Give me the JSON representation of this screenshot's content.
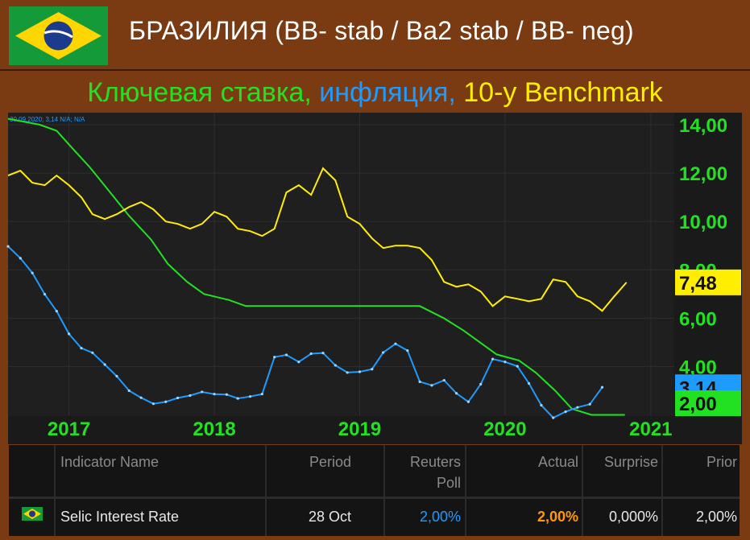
{
  "header": {
    "title": "БРАЗИЛИЯ (BB- stab / Ba2 stab / BB- neg)",
    "subtitle_parts": [
      "Ключевая ставка,",
      " инфляция,",
      " 10-y Benchmark"
    ]
  },
  "chart_info_text": "30.09.2020; 3,14 N/A; N/A",
  "colors": {
    "key_rate": "#22e022",
    "inflation": "#1e9bff",
    "benchmark": "#ffee00",
    "header_bg": "#7a3b12",
    "chart_bg": "#1f1f1f",
    "axis_text": "#22e022"
  },
  "chart_data": {
    "type": "line",
    "xlim": [
      "2016-08-01",
      "2021-03-01"
    ],
    "ylim": [
      1.95,
      14.5
    ],
    "x_tick_labels": [
      "2017",
      "2018",
      "2019",
      "2020",
      "2021"
    ],
    "x_tick_dates": [
      "2017-01-01",
      "2018-01-01",
      "2019-01-01",
      "2020-01-01",
      "2021-01-01"
    ],
    "y_tick_labels": [
      "14,00",
      "12,00",
      "10,00",
      "8,00",
      "6,00",
      "4,00"
    ],
    "y_tick_values": [
      14,
      12,
      10,
      8,
      6,
      4
    ],
    "last_value_labels": [
      {
        "series": "benchmark",
        "value": 7.48,
        "text": "7,48"
      },
      {
        "series": "inflation",
        "value": 3.14,
        "text": "3,14"
      },
      {
        "series": "key_rate",
        "value": 2.0,
        "text": "2,00"
      }
    ],
    "series": [
      {
        "key": "key_rate",
        "x": [
          "2016-08-01",
          "2016-10-20",
          "2016-12-01",
          "2017-01-11",
          "2017-02-22",
          "2017-04-12",
          "2017-05-31",
          "2017-07-26",
          "2017-09-06",
          "2017-10-25",
          "2017-12-06",
          "2018-02-07",
          "2018-03-21",
          "2018-06-01",
          "2019-06-01",
          "2019-07-31",
          "2019-09-18",
          "2019-10-30",
          "2019-12-11",
          "2020-02-05",
          "2020-03-18",
          "2020-05-06",
          "2020-06-17",
          "2020-08-05",
          "2020-10-28"
        ],
        "y": [
          14.25,
          14.0,
          13.75,
          13.0,
          12.25,
          11.25,
          10.25,
          9.25,
          8.25,
          7.5,
          7.0,
          6.75,
          6.5,
          6.5,
          6.5,
          6.0,
          5.5,
          5.0,
          4.5,
          4.25,
          3.75,
          3.0,
          2.25,
          2.0,
          2.0
        ]
      },
      {
        "key": "inflation",
        "x": [
          "2016-08-01",
          "2016-09-01",
          "2016-10-01",
          "2016-11-01",
          "2016-12-01",
          "2017-01-01",
          "2017-02-01",
          "2017-03-01",
          "2017-04-01",
          "2017-05-01",
          "2017-06-01",
          "2017-07-01",
          "2017-08-01",
          "2017-09-01",
          "2017-10-01",
          "2017-11-01",
          "2017-12-01",
          "2018-01-01",
          "2018-02-01",
          "2018-03-01",
          "2018-04-01",
          "2018-05-01",
          "2018-06-01",
          "2018-07-01",
          "2018-08-01",
          "2018-09-01",
          "2018-10-01",
          "2018-11-01",
          "2018-12-01",
          "2019-01-01",
          "2019-02-01",
          "2019-03-01",
          "2019-04-01",
          "2019-05-01",
          "2019-06-01",
          "2019-07-01",
          "2019-08-01",
          "2019-09-01",
          "2019-10-01",
          "2019-11-01",
          "2019-12-01",
          "2020-01-01",
          "2020-02-01",
          "2020-03-01",
          "2020-04-01",
          "2020-05-01",
          "2020-06-01",
          "2020-07-01",
          "2020-08-01",
          "2020-09-01"
        ],
        "y": [
          8.97,
          8.48,
          7.87,
          6.99,
          6.29,
          5.35,
          4.76,
          4.57,
          4.08,
          3.6,
          3.0,
          2.71,
          2.46,
          2.54,
          2.7,
          2.8,
          2.95,
          2.86,
          2.84,
          2.68,
          2.76,
          2.86,
          4.39,
          4.48,
          4.19,
          4.53,
          4.56,
          4.05,
          3.75,
          3.78,
          3.89,
          4.58,
          4.94,
          4.66,
          3.37,
          3.22,
          3.43,
          2.89,
          2.54,
          3.27,
          4.31,
          4.19,
          4.01,
          3.3,
          2.4,
          1.88,
          2.13,
          2.31,
          2.44,
          3.14
        ]
      },
      {
        "key": "benchmark",
        "x": [
          "2016-08-01",
          "2016-09-01",
          "2016-10-01",
          "2016-11-01",
          "2016-12-01",
          "2017-01-01",
          "2017-02-01",
          "2017-03-01",
          "2017-04-01",
          "2017-05-01",
          "2017-06-01",
          "2017-07-01",
          "2017-08-01",
          "2017-09-01",
          "2017-10-01",
          "2017-11-01",
          "2017-12-01",
          "2018-01-01",
          "2018-02-01",
          "2018-03-01",
          "2018-04-01",
          "2018-05-01",
          "2018-06-01",
          "2018-07-01",
          "2018-08-01",
          "2018-09-01",
          "2018-10-01",
          "2018-11-01",
          "2018-12-01",
          "2019-01-01",
          "2019-02-01",
          "2019-03-01",
          "2019-04-01",
          "2019-05-01",
          "2019-06-01",
          "2019-07-01",
          "2019-08-01",
          "2019-09-01",
          "2019-10-01",
          "2019-11-01",
          "2019-12-01",
          "2020-01-01",
          "2020-02-01",
          "2020-03-01",
          "2020-04-01",
          "2020-05-01",
          "2020-06-01",
          "2020-07-01",
          "2020-08-01",
          "2020-09-01",
          "2020-10-01",
          "2020-11-01"
        ],
        "y": [
          11.9,
          12.1,
          11.6,
          11.5,
          11.9,
          11.5,
          11.0,
          10.3,
          10.1,
          10.3,
          10.6,
          10.8,
          10.5,
          10.0,
          9.9,
          9.7,
          9.9,
          10.4,
          10.2,
          9.7,
          9.6,
          9.4,
          9.7,
          11.2,
          11.5,
          11.1,
          12.2,
          11.7,
          10.2,
          9.9,
          9.3,
          8.9,
          9.0,
          9.0,
          8.9,
          8.4,
          7.5,
          7.3,
          7.4,
          7.1,
          6.5,
          6.9,
          6.8,
          6.7,
          6.8,
          7.6,
          7.5,
          6.9,
          6.7,
          6.3,
          6.9,
          7.48
        ]
      }
    ]
  },
  "table": {
    "headers": {
      "indicator": "Indicator Name",
      "period": "Period",
      "reuters_line1": "Reuters",
      "reuters_line2": "Poll",
      "actual": "Actual",
      "surprise": "Surprise",
      "prior": "Prior"
    },
    "row": {
      "flag_icon": "brazil-flag-icon",
      "indicator": "Selic Interest Rate",
      "period": "28 Oct",
      "reuters_poll": "2,00%",
      "actual": "2,00%",
      "surprise": "0,000%",
      "prior": "2,00%"
    },
    "colors": {
      "reuters_poll": "#1e9bff",
      "actual": "#ff9900"
    }
  }
}
